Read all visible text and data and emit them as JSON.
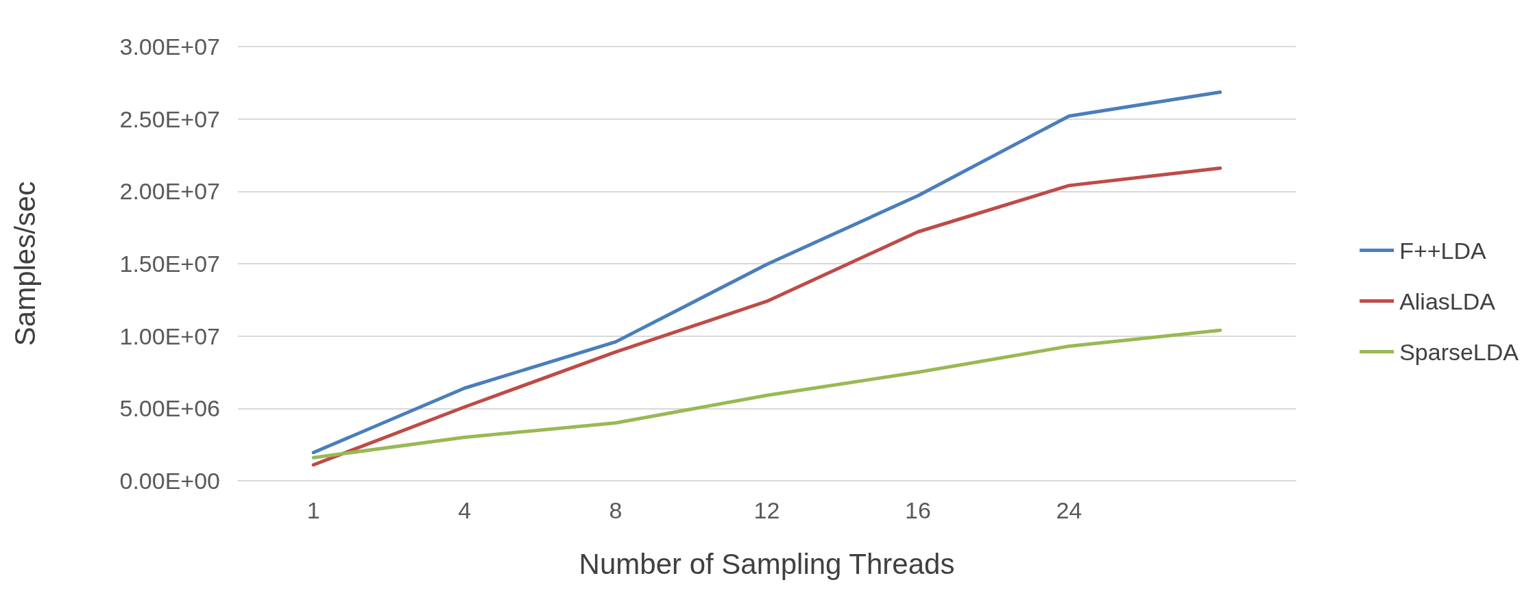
{
  "chart_data": {
    "type": "line",
    "xlabel": "Number of Sampling Threads",
    "ylabel": "Samples/sec",
    "categories": [
      "1",
      "4",
      "8",
      "12",
      "16",
      "24",
      null
    ],
    "series": [
      {
        "name": "F++LDA",
        "color": "#4a7ebb",
        "values": [
          1950000,
          6400000,
          9600000,
          14950000,
          19700000,
          25200000,
          26850000
        ]
      },
      {
        "name": "AliasLDA",
        "color": "#be4b48",
        "values": [
          1100000,
          5100000,
          8900000,
          12400000,
          17200000,
          20400000,
          21600000
        ]
      },
      {
        "name": "SparseLDA",
        "color": "#98b954",
        "values": [
          1600000,
          3000000,
          4000000,
          5900000,
          7500000,
          9300000,
          10400000
        ]
      }
    ],
    "ylim": [
      0,
      30000000
    ],
    "yticks": [
      {
        "value": 0,
        "label": "0.00E+00"
      },
      {
        "value": 5000000,
        "label": "5.00E+06"
      },
      {
        "value": 10000000,
        "label": "1.00E+07"
      },
      {
        "value": 15000000,
        "label": "1.50E+07"
      },
      {
        "value": 20000000,
        "label": "2.00E+07"
      },
      {
        "value": 25000000,
        "label": "2.50E+07"
      },
      {
        "value": 30000000,
        "label": "3.00E+07"
      }
    ],
    "grid": "y",
    "legend": "right",
    "marker": "none",
    "line_style": "solid"
  }
}
